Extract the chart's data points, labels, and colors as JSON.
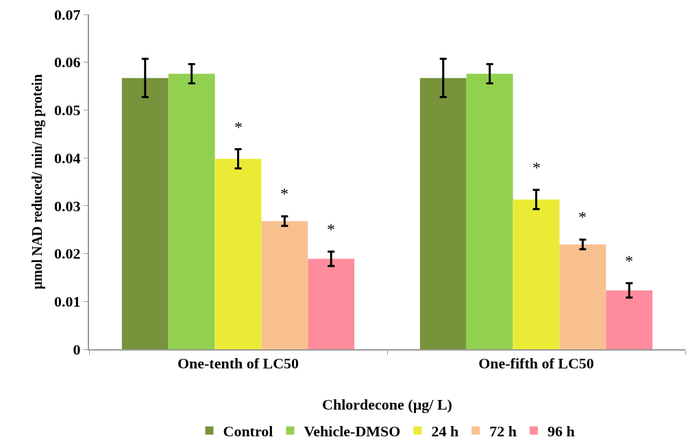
{
  "chart_data": {
    "type": "bar",
    "xlabel": "Chlordecone (µg/ L)",
    "ylabel": "µmol NAD reduced/ min/ mg protein",
    "categories": [
      "One-tenth of LC50",
      "One-fifth of LC50"
    ],
    "series": [
      {
        "name": "Control",
        "color": "#77933c",
        "values": [
          0.0567,
          0.0567
        ],
        "errors": [
          0.004,
          0.004
        ]
      },
      {
        "name": "Vehicle-DMSO",
        "color": "#92d050",
        "values": [
          0.0576,
          0.0576
        ],
        "errors": [
          0.002,
          0.002
        ]
      },
      {
        "name": "24 h",
        "color": "#ebeb35",
        "values": [
          0.0398,
          0.0313
        ],
        "errors": [
          0.002,
          0.002
        ]
      },
      {
        "name": "72 h",
        "color": "#f9c08f",
        "values": [
          0.0268,
          0.0219
        ],
        "errors": [
          0.001,
          0.001
        ]
      },
      {
        "name": "96 h",
        "color": "#ff8c9c",
        "values": [
          0.0189,
          0.0123
        ],
        "errors": [
          0.0015,
          0.0015
        ]
      }
    ],
    "ylim": [
      0,
      0.07
    ],
    "yticks": [
      0,
      0.01,
      0.02,
      0.03,
      0.04,
      0.05,
      0.06,
      0.07
    ],
    "grid": false,
    "legend": "bottom",
    "annotations": [
      "*",
      "*",
      "*",
      "*",
      "*",
      "*"
    ]
  }
}
